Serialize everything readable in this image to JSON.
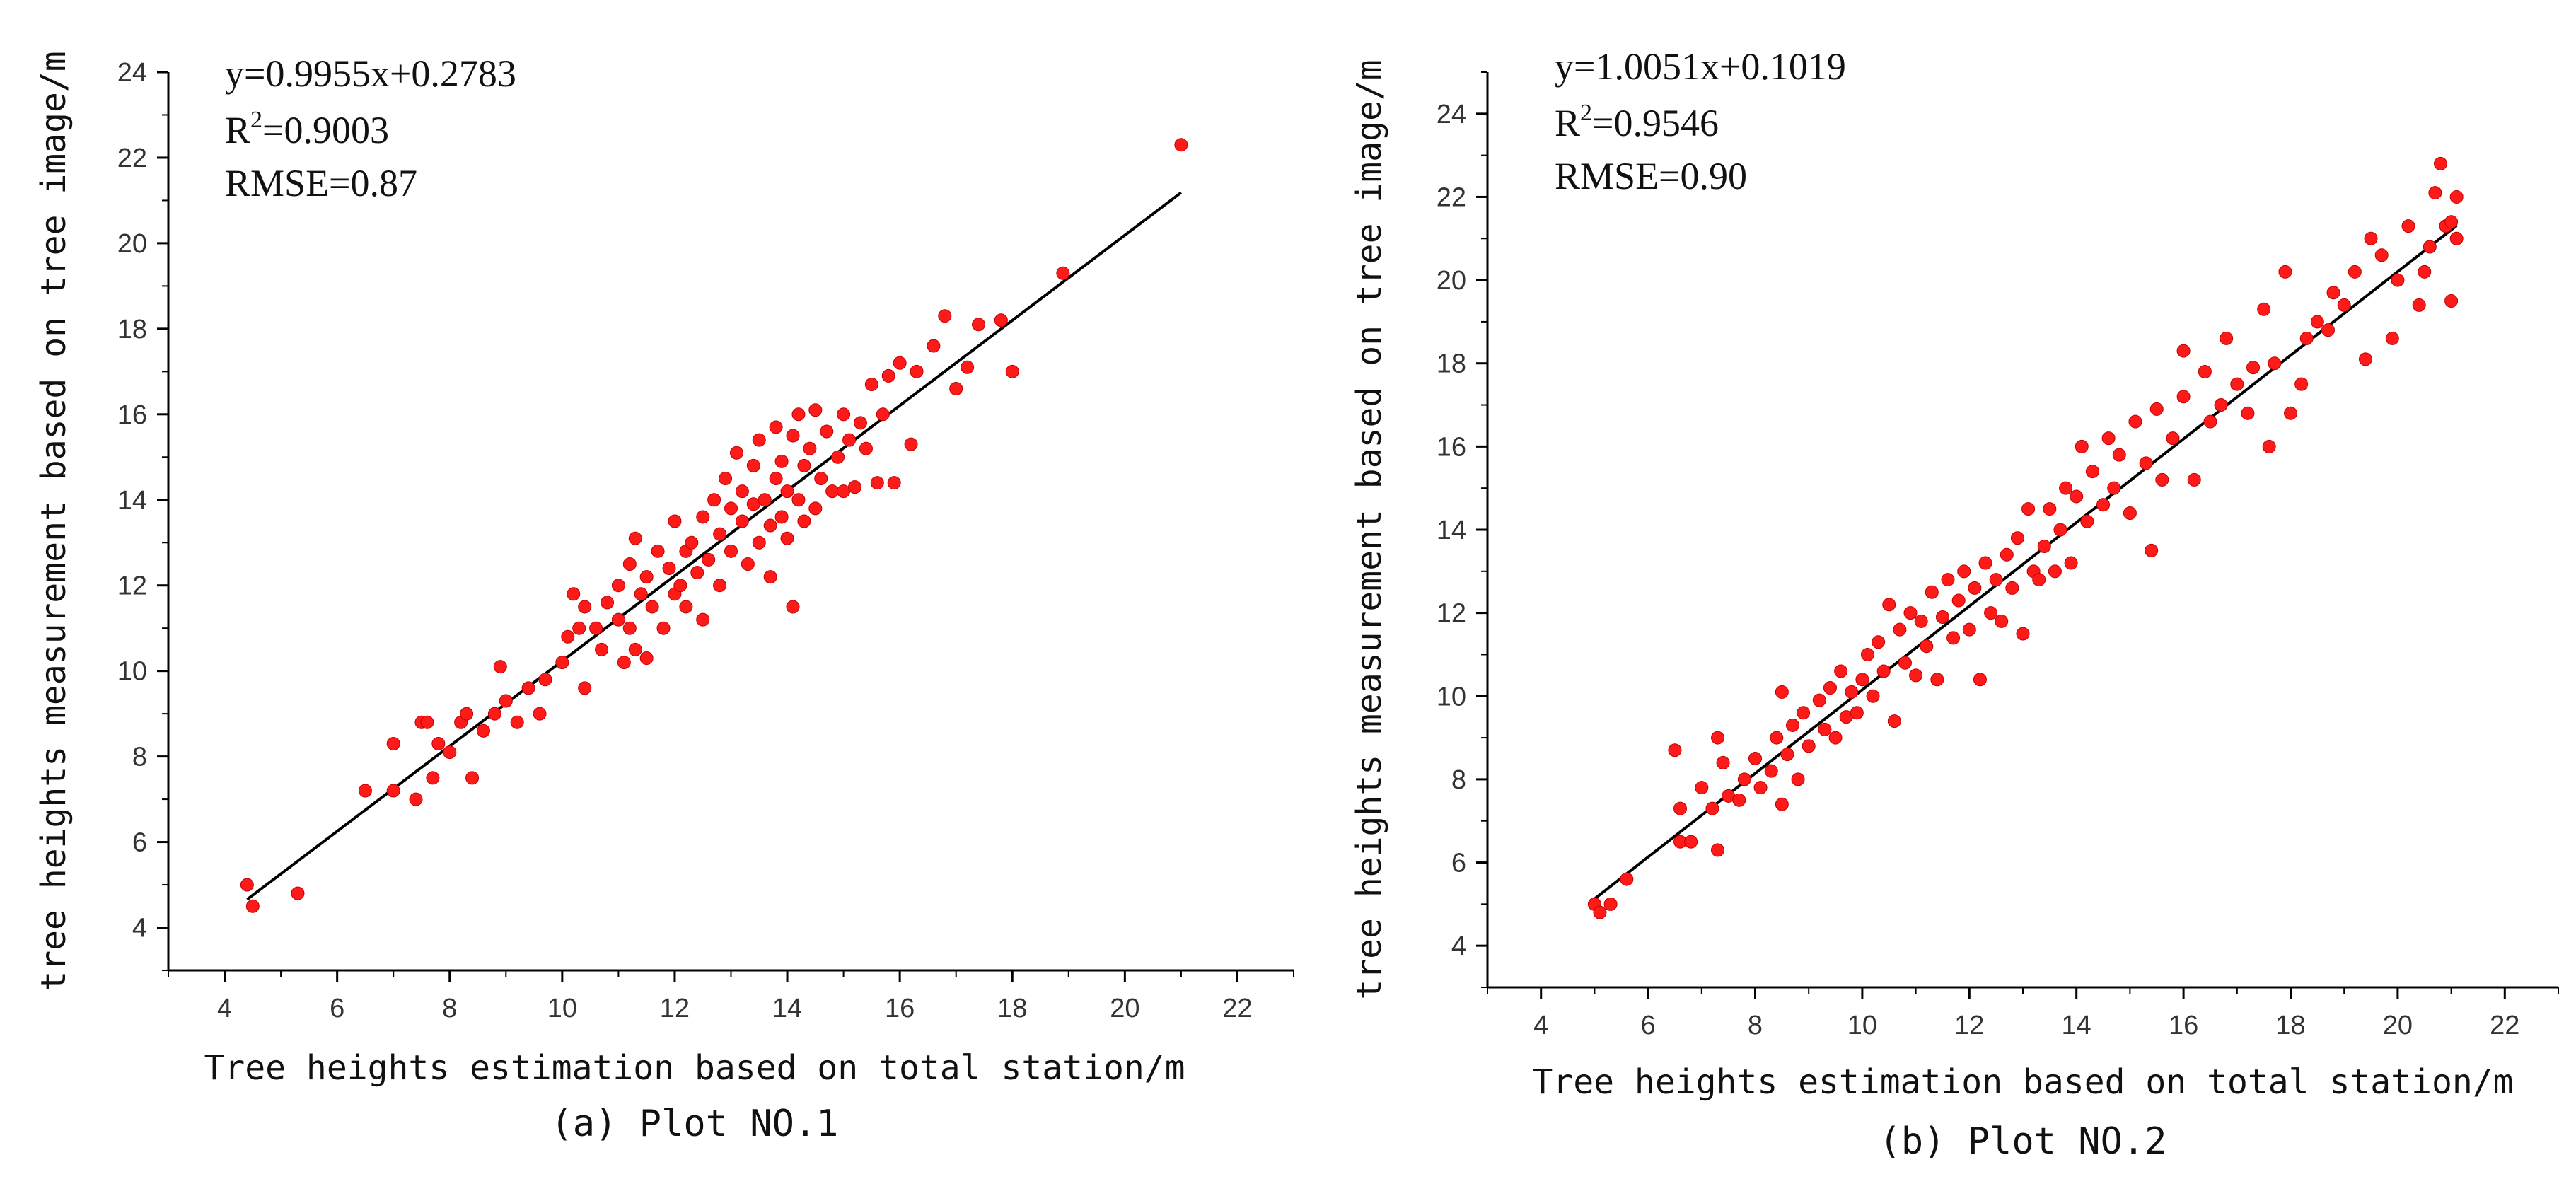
{
  "chart_data": [
    {
      "type": "scatter",
      "caption": "(a) Plot NO.1",
      "xlabel": "Tree heights estimation based on total station/m",
      "ylabel": "tree heights measurement based on tree image/m",
      "xlim": [
        3,
        23
      ],
      "ylim": [
        3,
        24
      ],
      "xticks": [
        4,
        6,
        8,
        10,
        12,
        14,
        16,
        18,
        20,
        22
      ],
      "yticks": [
        4,
        6,
        8,
        10,
        12,
        14,
        16,
        18,
        20,
        22,
        24
      ],
      "xtick_labels": [
        "4",
        "6",
        "8",
        "10",
        "12",
        "14",
        "16",
        "18",
        "20",
        "22"
      ],
      "ytick_labels": [
        "4",
        "6",
        "8",
        "10",
        "12",
        "14",
        "16",
        "18",
        "20",
        "22",
        "24"
      ],
      "equation": "y=0.9955x+0.2783",
      "r2_label": "R",
      "r2_sup": "2",
      "r2_value": "=0.9003",
      "rmse": "RMSE=0.87",
      "fit": {
        "slope": 0.9955,
        "intercept": 0.2783,
        "x_range": [
          4.4,
          21.0
        ]
      },
      "marker_color": "#ff1a1a",
      "series": [
        {
          "name": "Plot NO.1",
          "points": [
            [
              4.4,
              5.0
            ],
            [
              4.5,
              4.5
            ],
            [
              5.3,
              4.8
            ],
            [
              6.5,
              7.2
            ],
            [
              7.0,
              7.2
            ],
            [
              7.0,
              8.3
            ],
            [
              7.4,
              7.0
            ],
            [
              7.5,
              8.8
            ],
            [
              7.6,
              8.8
            ],
            [
              7.7,
              7.5
            ],
            [
              7.8,
              8.3
            ],
            [
              8.0,
              8.1
            ],
            [
              8.2,
              8.8
            ],
            [
              8.3,
              9.0
            ],
            [
              8.4,
              7.5
            ],
            [
              8.6,
              8.6
            ],
            [
              8.8,
              9.0
            ],
            [
              8.9,
              10.1
            ],
            [
              9.0,
              9.3
            ],
            [
              9.2,
              8.8
            ],
            [
              9.4,
              9.6
            ],
            [
              9.6,
              9.0
            ],
            [
              9.7,
              9.8
            ],
            [
              10.0,
              10.2
            ],
            [
              10.1,
              10.8
            ],
            [
              10.2,
              11.8
            ],
            [
              10.3,
              11.0
            ],
            [
              10.4,
              11.5
            ],
            [
              10.4,
              9.6
            ],
            [
              10.6,
              11.0
            ],
            [
              10.7,
              10.5
            ],
            [
              10.8,
              11.6
            ],
            [
              11.0,
              11.2
            ],
            [
              11.0,
              12.0
            ],
            [
              11.1,
              10.2
            ],
            [
              11.2,
              12.5
            ],
            [
              11.2,
              11.0
            ],
            [
              11.3,
              10.5
            ],
            [
              11.3,
              13.1
            ],
            [
              11.4,
              11.8
            ],
            [
              11.5,
              12.2
            ],
            [
              11.5,
              10.3
            ],
            [
              11.6,
              11.5
            ],
            [
              11.7,
              12.8
            ],
            [
              11.8,
              11.0
            ],
            [
              11.9,
              12.4
            ],
            [
              12.0,
              11.8
            ],
            [
              12.0,
              13.5
            ],
            [
              12.1,
              12.0
            ],
            [
              12.2,
              11.5
            ],
            [
              12.2,
              12.8
            ],
            [
              12.3,
              13.0
            ],
            [
              12.4,
              12.3
            ],
            [
              12.5,
              11.2
            ],
            [
              12.5,
              13.6
            ],
            [
              12.6,
              12.6
            ],
            [
              12.7,
              14.0
            ],
            [
              12.8,
              13.2
            ],
            [
              12.8,
              12.0
            ],
            [
              12.9,
              14.5
            ],
            [
              13.0,
              13.8
            ],
            [
              13.0,
              12.8
            ],
            [
              13.1,
              15.1
            ],
            [
              13.2,
              13.5
            ],
            [
              13.2,
              14.2
            ],
            [
              13.3,
              12.5
            ],
            [
              13.4,
              13.9
            ],
            [
              13.4,
              14.8
            ],
            [
              13.5,
              13.0
            ],
            [
              13.5,
              15.4
            ],
            [
              13.6,
              14.0
            ],
            [
              13.7,
              13.4
            ],
            [
              13.7,
              12.2
            ],
            [
              13.8,
              14.5
            ],
            [
              13.8,
              15.7
            ],
            [
              13.9,
              13.6
            ],
            [
              13.9,
              14.9
            ],
            [
              14.0,
              14.2
            ],
            [
              14.0,
              13.1
            ],
            [
              14.1,
              15.5
            ],
            [
              14.1,
              11.5
            ],
            [
              14.2,
              14.0
            ],
            [
              14.2,
              16.0
            ],
            [
              14.3,
              13.5
            ],
            [
              14.3,
              14.8
            ],
            [
              14.4,
              15.2
            ],
            [
              14.5,
              13.8
            ],
            [
              14.5,
              16.1
            ],
            [
              14.6,
              14.5
            ],
            [
              14.7,
              15.6
            ],
            [
              14.8,
              14.2
            ],
            [
              14.9,
              15.0
            ],
            [
              15.0,
              16.0
            ],
            [
              15.0,
              14.2
            ],
            [
              15.1,
              15.4
            ],
            [
              15.2,
              14.3
            ],
            [
              15.3,
              15.8
            ],
            [
              15.4,
              15.2
            ],
            [
              15.5,
              16.7
            ],
            [
              15.6,
              14.4
            ],
            [
              15.7,
              16.0
            ],
            [
              15.8,
              16.9
            ],
            [
              15.9,
              14.4
            ],
            [
              16.0,
              17.2
            ],
            [
              16.2,
              15.3
            ],
            [
              16.3,
              17.0
            ],
            [
              16.6,
              17.6
            ],
            [
              16.8,
              18.3
            ],
            [
              17.0,
              16.6
            ],
            [
              17.2,
              17.1
            ],
            [
              17.4,
              18.1
            ],
            [
              17.8,
              18.2
            ],
            [
              18.0,
              17.0
            ],
            [
              18.9,
              19.3
            ],
            [
              21.0,
              22.3
            ]
          ]
        }
      ]
    },
    {
      "type": "scatter",
      "caption": "(b) Plot NO.2",
      "xlabel": "Tree heights estimation based on total station/m",
      "ylabel": "tree heights measurement based on tree image/m",
      "xlim": [
        3,
        23
      ],
      "ylim": [
        3,
        25
      ],
      "xticks": [
        4,
        6,
        8,
        10,
        12,
        14,
        16,
        18,
        20,
        22
      ],
      "yticks": [
        4,
        6,
        8,
        10,
        12,
        14,
        16,
        18,
        20,
        22,
        24
      ],
      "xtick_labels": [
        "4",
        "6",
        "8",
        "10",
        "12",
        "14",
        "16",
        "18",
        "20",
        "22"
      ],
      "ytick_labels": [
        "4",
        "6",
        "8",
        "10",
        "12",
        "14",
        "16",
        "18",
        "20",
        "22",
        "24"
      ],
      "equation": "y=1.0051x+0.1019",
      "r2_label": "R",
      "r2_sup": "2",
      "r2_value": "=0.9546",
      "rmse": "RMSE=0.90",
      "fit": {
        "slope": 1.0051,
        "intercept": 0.1019,
        "x_range": [
          5.0,
          21.1
        ]
      },
      "marker_color": "#ff1a1a",
      "series": [
        {
          "name": "Plot NO.2",
          "points": [
            [
              5.0,
              5.0
            ],
            [
              5.1,
              4.8
            ],
            [
              5.3,
              5.0
            ],
            [
              5.6,
              5.6
            ],
            [
              6.5,
              8.7
            ],
            [
              6.6,
              6.5
            ],
            [
              6.6,
              7.3
            ],
            [
              6.8,
              6.5
            ],
            [
              7.0,
              7.8
            ],
            [
              7.2,
              7.3
            ],
            [
              7.3,
              9.0
            ],
            [
              7.3,
              6.3
            ],
            [
              7.4,
              8.4
            ],
            [
              7.5,
              7.6
            ],
            [
              7.7,
              7.5
            ],
            [
              7.8,
              8.0
            ],
            [
              8.0,
              8.5
            ],
            [
              8.1,
              7.8
            ],
            [
              8.3,
              8.2
            ],
            [
              8.4,
              9.0
            ],
            [
              8.5,
              7.4
            ],
            [
              8.5,
              10.1
            ],
            [
              8.6,
              8.6
            ],
            [
              8.7,
              9.3
            ],
            [
              8.8,
              8.0
            ],
            [
              8.9,
              9.6
            ],
            [
              9.0,
              8.8
            ],
            [
              9.2,
              9.9
            ],
            [
              9.3,
              9.2
            ],
            [
              9.4,
              10.2
            ],
            [
              9.5,
              9.0
            ],
            [
              9.6,
              10.6
            ],
            [
              9.7,
              9.5
            ],
            [
              9.8,
              10.1
            ],
            [
              9.9,
              9.6
            ],
            [
              10.0,
              10.4
            ],
            [
              10.1,
              11.0
            ],
            [
              10.2,
              10.0
            ],
            [
              10.3,
              11.3
            ],
            [
              10.4,
              10.6
            ],
            [
              10.5,
              12.2
            ],
            [
              10.6,
              9.4
            ],
            [
              10.7,
              11.6
            ],
            [
              10.8,
              10.8
            ],
            [
              10.9,
              12.0
            ],
            [
              11.0,
              10.5
            ],
            [
              11.1,
              11.8
            ],
            [
              11.2,
              11.2
            ],
            [
              11.3,
              12.5
            ],
            [
              11.4,
              10.4
            ],
            [
              11.5,
              11.9
            ],
            [
              11.6,
              12.8
            ],
            [
              11.7,
              11.4
            ],
            [
              11.8,
              12.3
            ],
            [
              11.9,
              13.0
            ],
            [
              12.0,
              11.6
            ],
            [
              12.1,
              12.6
            ],
            [
              12.2,
              10.4
            ],
            [
              12.3,
              13.2
            ],
            [
              12.4,
              12.0
            ],
            [
              12.5,
              12.8
            ],
            [
              12.6,
              11.8
            ],
            [
              12.7,
              13.4
            ],
            [
              12.8,
              12.6
            ],
            [
              12.9,
              13.8
            ],
            [
              13.0,
              11.5
            ],
            [
              13.1,
              14.5
            ],
            [
              13.2,
              13.0
            ],
            [
              13.3,
              12.8
            ],
            [
              13.4,
              13.6
            ],
            [
              13.5,
              14.5
            ],
            [
              13.6,
              13.0
            ],
            [
              13.7,
              14.0
            ],
            [
              13.8,
              15.0
            ],
            [
              13.9,
              13.2
            ],
            [
              14.0,
              14.8
            ],
            [
              14.1,
              16.0
            ],
            [
              14.2,
              14.2
            ],
            [
              14.3,
              15.4
            ],
            [
              14.5,
              14.6
            ],
            [
              14.6,
              16.2
            ],
            [
              14.7,
              15.0
            ],
            [
              14.8,
              15.8
            ],
            [
              15.0,
              14.4
            ],
            [
              15.1,
              16.6
            ],
            [
              15.3,
              15.6
            ],
            [
              15.4,
              13.5
            ],
            [
              15.5,
              16.9
            ],
            [
              15.6,
              15.2
            ],
            [
              15.8,
              16.2
            ],
            [
              16.0,
              17.2
            ],
            [
              16.0,
              18.3
            ],
            [
              16.2,
              15.2
            ],
            [
              16.4,
              17.8
            ],
            [
              16.5,
              16.6
            ],
            [
              16.7,
              17.0
            ],
            [
              16.8,
              18.6
            ],
            [
              17.0,
              17.5
            ],
            [
              17.2,
              16.8
            ],
            [
              17.3,
              17.9
            ],
            [
              17.5,
              19.3
            ],
            [
              17.6,
              16.0
            ],
            [
              17.7,
              18.0
            ],
            [
              17.9,
              20.2
            ],
            [
              18.0,
              16.8
            ],
            [
              18.2,
              17.5
            ],
            [
              18.3,
              18.6
            ],
            [
              18.5,
              19.0
            ],
            [
              18.7,
              18.8
            ],
            [
              18.8,
              19.7
            ],
            [
              19.0,
              19.4
            ],
            [
              19.2,
              20.2
            ],
            [
              19.4,
              18.1
            ],
            [
              19.5,
              21.0
            ],
            [
              19.7,
              20.6
            ],
            [
              19.9,
              18.6
            ],
            [
              20.0,
              20.0
            ],
            [
              20.2,
              21.3
            ],
            [
              20.4,
              19.4
            ],
            [
              20.5,
              20.2
            ],
            [
              20.7,
              22.1
            ],
            [
              20.8,
              22.8
            ],
            [
              20.9,
              21.3
            ],
            [
              21.0,
              19.5
            ],
            [
              21.0,
              21.4
            ],
            [
              21.1,
              22.0
            ],
            [
              21.1,
              21.0
            ],
            [
              20.6,
              20.8
            ]
          ]
        }
      ]
    }
  ]
}
